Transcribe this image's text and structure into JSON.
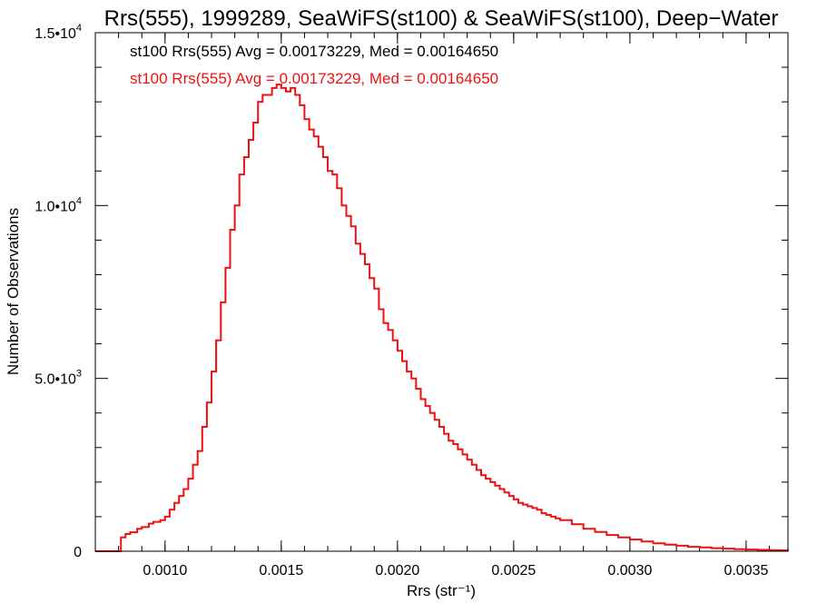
{
  "chart_data": {
    "type": "line",
    "title": "Rrs(555), 1999289, SeaWiFS(st100) & SeaWiFS(st100), Deep−Water",
    "xlabel": "Rrs (str⁻¹)",
    "ylabel": "Number of Observations",
    "xlim": [
      0.0007,
      0.00368
    ],
    "ylim": [
      0,
      15000
    ],
    "x_ticks": [
      {
        "value": 0.001,
        "label": "0.0010"
      },
      {
        "value": 0.0015,
        "label": "0.0015"
      },
      {
        "value": 0.002,
        "label": "0.0020"
      },
      {
        "value": 0.0025,
        "label": "0.0025"
      },
      {
        "value": 0.003,
        "label": "0.0030"
      },
      {
        "value": 0.0035,
        "label": "0.0035"
      }
    ],
    "y_ticks": [
      {
        "value": 0,
        "mantissa": "0",
        "exp": ""
      },
      {
        "value": 5000,
        "mantissa": "5.0•10",
        "exp": "3"
      },
      {
        "value": 10000,
        "mantissa": "1.0•10",
        "exp": "4"
      },
      {
        "value": 15000,
        "mantissa": "1.5•10",
        "exp": "4"
      }
    ],
    "annotations": [
      {
        "text": "st100 Rrs(555) Avg = 0.00173229, Med = 0.00164650",
        "color": "#000000"
      },
      {
        "text": "st100 Rrs(555) Avg = 0.00173229, Med = 0.00164650",
        "color": "#ee1111"
      }
    ],
    "series": [
      {
        "color": "#ee1111",
        "step": true,
        "x": [
          0.0007,
          0.0008,
          0.00081,
          0.00083,
          0.00085,
          0.00088,
          0.0009,
          0.00093,
          0.00095,
          0.00098,
          0.001,
          0.00102,
          0.00104,
          0.00106,
          0.00108,
          0.0011,
          0.00112,
          0.00114,
          0.00116,
          0.00118,
          0.0012,
          0.00122,
          0.00124,
          0.00126,
          0.00128,
          0.0013,
          0.00132,
          0.00134,
          0.00136,
          0.00138,
          0.0014,
          0.00142,
          0.00144,
          0.00146,
          0.00148,
          0.0015,
          0.00152,
          0.00154,
          0.00156,
          0.00158,
          0.0016,
          0.00162,
          0.00164,
          0.00166,
          0.00168,
          0.0017,
          0.00172,
          0.00174,
          0.00176,
          0.00178,
          0.0018,
          0.00182,
          0.00184,
          0.00186,
          0.00188,
          0.0019,
          0.00192,
          0.00194,
          0.00196,
          0.00198,
          0.002,
          0.00202,
          0.00204,
          0.00206,
          0.00208,
          0.0021,
          0.00212,
          0.00214,
          0.00216,
          0.00218,
          0.0022,
          0.00222,
          0.00224,
          0.00226,
          0.00228,
          0.0023,
          0.00232,
          0.00234,
          0.00236,
          0.00238,
          0.0024,
          0.00242,
          0.00244,
          0.00246,
          0.00248,
          0.0025,
          0.00252,
          0.00254,
          0.00256,
          0.00258,
          0.0026,
          0.00262,
          0.00264,
          0.00266,
          0.00268,
          0.0027,
          0.00275,
          0.0028,
          0.00285,
          0.0029,
          0.00295,
          0.003,
          0.00305,
          0.0031,
          0.00315,
          0.0032,
          0.00325,
          0.0033,
          0.00335,
          0.0034,
          0.00345,
          0.0035,
          0.00355,
          0.0036,
          0.00365,
          0.00368
        ],
        "y": [
          0,
          0,
          400,
          500,
          550,
          650,
          700,
          800,
          850,
          900,
          1000,
          1200,
          1400,
          1600,
          1800,
          2100,
          2500,
          2900,
          3600,
          4300,
          5200,
          6100,
          7200,
          8200,
          9300,
          10000,
          10900,
          11400,
          11900,
          12400,
          13000,
          13200,
          13200,
          13400,
          13500,
          13400,
          13300,
          13400,
          13200,
          12900,
          12500,
          12200,
          12000,
          11700,
          11400,
          11000,
          10900,
          10500,
          10000,
          9700,
          9400,
          8900,
          8600,
          8300,
          7900,
          7600,
          7000,
          6600,
          6400,
          6100,
          5800,
          5500,
          5200,
          5000,
          4700,
          4400,
          4200,
          4000,
          3800,
          3600,
          3400,
          3200,
          3100,
          2950,
          2800,
          2650,
          2500,
          2350,
          2200,
          2100,
          2000,
          1900,
          1800,
          1700,
          1600,
          1500,
          1400,
          1350,
          1300,
          1250,
          1200,
          1100,
          1050,
          1000,
          950,
          900,
          780,
          650,
          560,
          470,
          400,
          340,
          280,
          230,
          190,
          160,
          130,
          110,
          90,
          75,
          60,
          50,
          40,
          30,
          25,
          20
        ]
      }
    ]
  }
}
